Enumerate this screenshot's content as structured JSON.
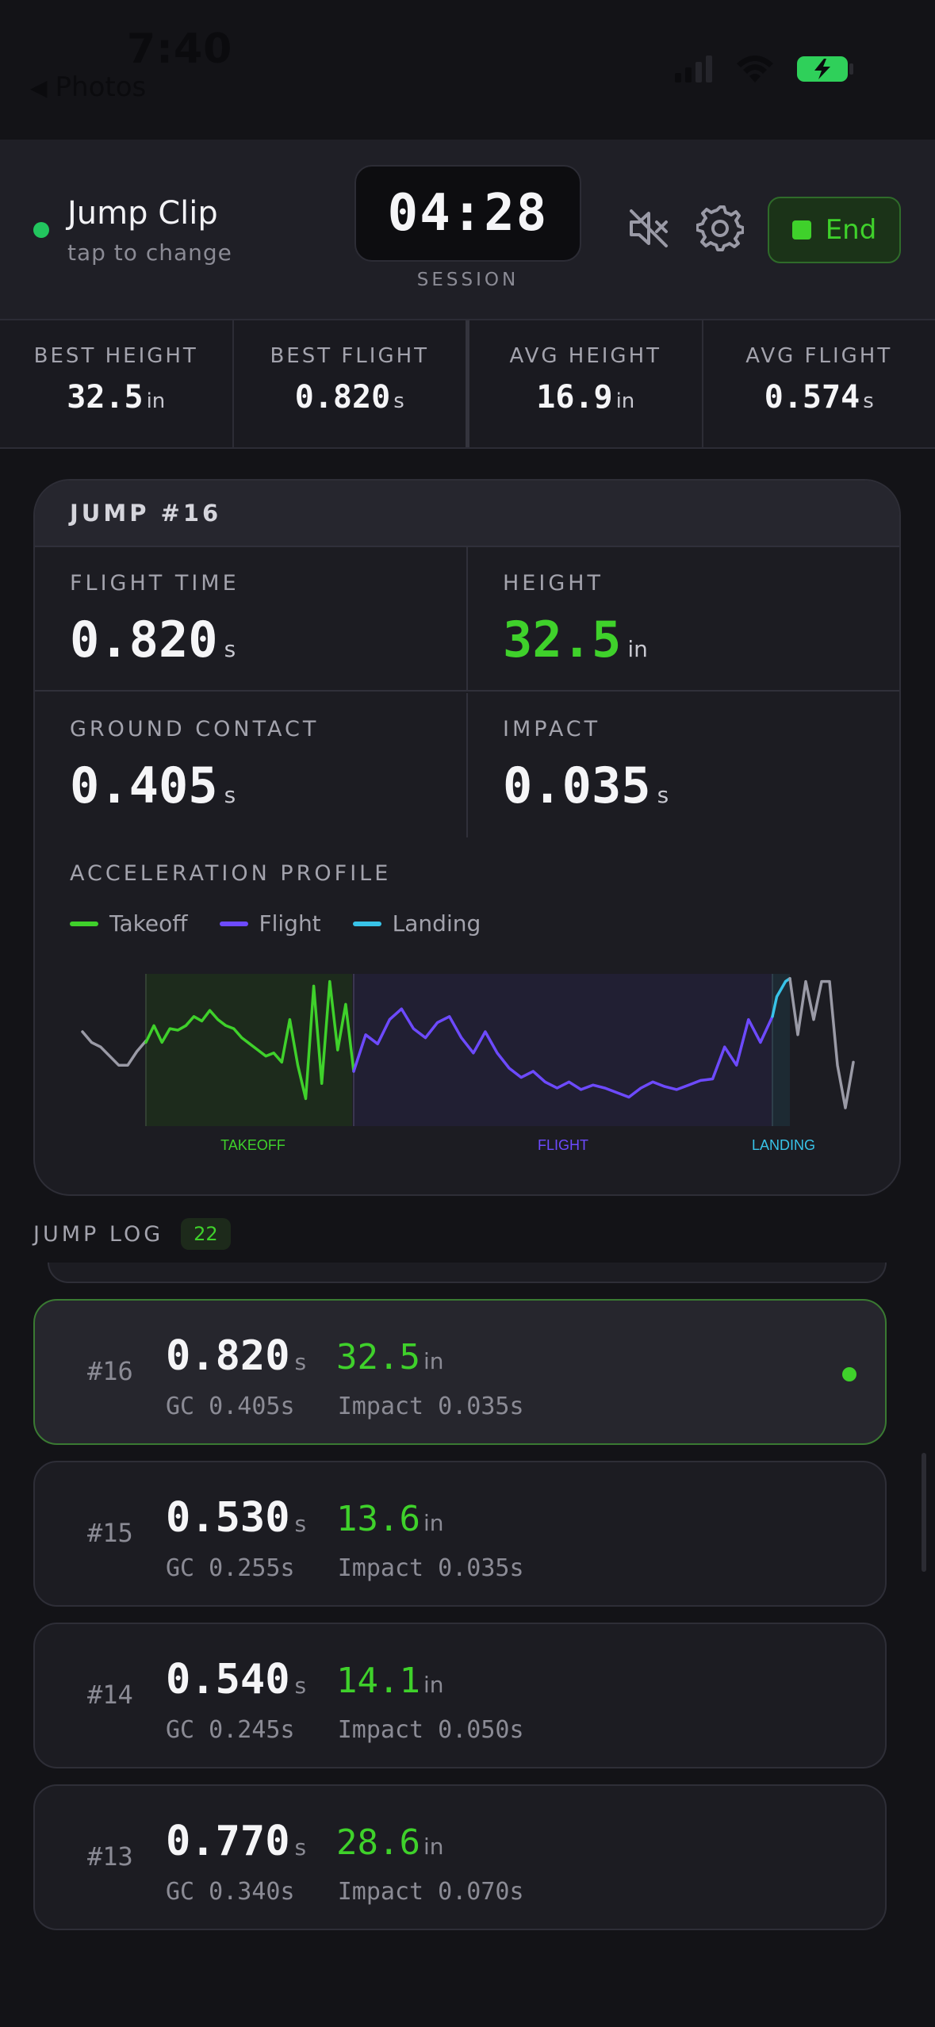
{
  "status_bar": {
    "time": "7:40",
    "back_label": "Photos"
  },
  "header": {
    "title": "Jump Clip",
    "subtitle": "tap to change",
    "timer": "04:28",
    "timer_label": "SESSION",
    "end_label": "End"
  },
  "stats": [
    {
      "label": "BEST HEIGHT",
      "value": "32.5",
      "unit": "in"
    },
    {
      "label": "BEST FLIGHT",
      "value": "0.820",
      "unit": "s"
    },
    {
      "label": "AVG HEIGHT",
      "value": "16.9",
      "unit": "in"
    },
    {
      "label": "AVG FLIGHT",
      "value": "0.574",
      "unit": "s"
    }
  ],
  "jump": {
    "title": "JUMP #16",
    "metrics": [
      {
        "label": "FLIGHT TIME",
        "value": "0.820",
        "unit": "s"
      },
      {
        "label": "HEIGHT",
        "value": "32.5",
        "unit": "in"
      },
      {
        "label": "GROUND CONTACT",
        "value": "0.405",
        "unit": "s"
      },
      {
        "label": "IMPACT",
        "value": "0.035",
        "unit": "s"
      }
    ],
    "profile_label": "ACCELERATION PROFILE",
    "legend": [
      {
        "label": "Takeoff",
        "color": "#3fd12b"
      },
      {
        "label": "Flight",
        "color": "#6d4aff"
      },
      {
        "label": "Landing",
        "color": "#38c3e8"
      }
    ],
    "phase_labels": [
      "TAKEOFF",
      "FLIGHT",
      "LANDING"
    ]
  },
  "chart_data": {
    "type": "line",
    "xlabel": "",
    "ylabel": "",
    "grid": false,
    "legend_placement": "top-left",
    "phase_labels": [
      "TAKEOFF",
      "FLIGHT",
      "LANDING"
    ],
    "series": [
      {
        "name": "",
        "phase": "pre",
        "color": "#9a9aa6",
        "values": [
          0.62,
          0.55,
          0.52,
          0.46,
          0.4,
          0.4,
          0.49,
          0.56
        ]
      },
      {
        "name": "Takeoff",
        "phase": "takeoff",
        "color": "#3fd12b",
        "values": [
          0.55,
          0.66,
          0.55,
          0.64,
          0.63,
          0.66,
          0.72,
          0.69,
          0.76,
          0.7,
          0.66,
          0.64,
          0.58,
          0.54,
          0.5,
          0.46,
          0.48,
          0.42,
          0.7,
          0.4,
          0.18,
          0.92,
          0.28,
          0.95,
          0.5,
          0.8,
          0.36
        ]
      },
      {
        "name": "Flight",
        "phase": "flight",
        "color": "#6d4aff",
        "values": [
          0.36,
          0.6,
          0.54,
          0.7,
          0.77,
          0.64,
          0.58,
          0.68,
          0.72,
          0.58,
          0.48,
          0.62,
          0.48,
          0.38,
          0.32,
          0.36,
          0.29,
          0.25,
          0.29,
          0.24,
          0.27,
          0.25,
          0.22,
          0.19,
          0.25,
          0.29,
          0.26,
          0.24,
          0.27,
          0.3,
          0.31,
          0.52,
          0.4,
          0.7,
          0.55,
          0.72
        ]
      },
      {
        "name": "Landing",
        "phase": "landing",
        "color": "#38c3e8",
        "values": [
          0.72,
          0.85,
          0.9,
          0.95,
          0.97
        ]
      },
      {
        "name": "",
        "phase": "post",
        "color": "#9a9aa6",
        "values": [
          0.97,
          0.6,
          0.95,
          0.7,
          0.95,
          0.95,
          0.4,
          0.12,
          0.42
        ]
      }
    ]
  },
  "log": {
    "title": "JUMP LOG",
    "count": "22",
    "items": [
      {
        "num": "#16",
        "flight": "0.820",
        "flight_unit": "s",
        "height": "32.5",
        "height_unit": "in",
        "sub": "GC 0.405s   Impact 0.035s"
      },
      {
        "num": "#15",
        "flight": "0.530",
        "flight_unit": "s",
        "height": "13.6",
        "height_unit": "in",
        "sub": "GC 0.255s   Impact 0.035s"
      },
      {
        "num": "#14",
        "flight": "0.540",
        "flight_unit": "s",
        "height": "14.1",
        "height_unit": "in",
        "sub": "GC 0.245s   Impact 0.050s"
      },
      {
        "num": "#13",
        "flight": "0.770",
        "flight_unit": "s",
        "height": "28.6",
        "height_unit": "in",
        "sub": "GC 0.340s   Impact 0.070s"
      }
    ]
  }
}
